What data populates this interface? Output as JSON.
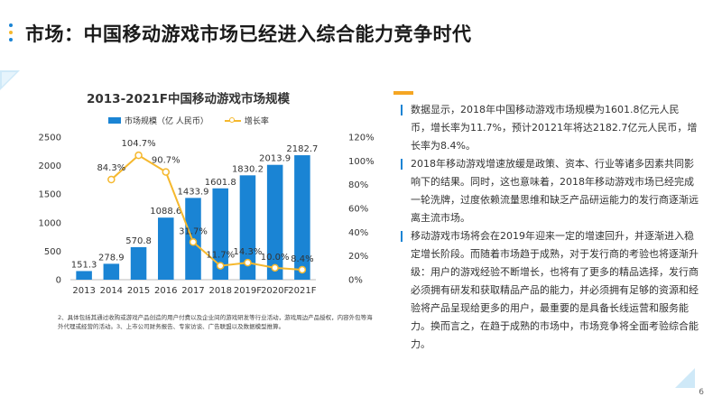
{
  "page_title": "市场：中国移动游戏市场已经进入综合能力竞争时代",
  "page_number": "6",
  "colors": {
    "bar": "#1a84d4",
    "line": "#f5b82e",
    "accent": "#f5a623",
    "dots": [
      "#1a84d4",
      "#f5b82e",
      "#1a84d4"
    ]
  },
  "chart_data": {
    "type": "bar",
    "title": "2013-2021F中国移动游戏市场规模",
    "categories": [
      "2013",
      "2014",
      "2015",
      "2016",
      "2017",
      "2018",
      "2019F",
      "2020F",
      "2021F"
    ],
    "series": [
      {
        "name": "市场规模（亿 人民币）",
        "type": "bar",
        "axis": "left",
        "values": [
          151.3,
          278.9,
          570.8,
          1088.6,
          1433.9,
          1601.8,
          1830.2,
          2013.9,
          2182.7
        ],
        "labels": [
          "151.3",
          "278.9",
          "570.8",
          "1088.6",
          "1433.9",
          "1601.8",
          "1830.2",
          "2013.9",
          "2182.7"
        ]
      },
      {
        "name": "增长率",
        "type": "line",
        "axis": "right",
        "values": [
          null,
          84.3,
          104.7,
          90.7,
          31.7,
          11.7,
          14.3,
          10.0,
          8.4
        ],
        "labels": [
          "",
          "84.3%",
          "104.7%",
          "90.7%",
          "31.7%",
          "11.7%",
          "14.3%",
          "10.0%",
          "8.4%"
        ]
      }
    ],
    "ylim": [
      0,
      2500
    ],
    "yticks": [
      "0",
      "500",
      "1000",
      "1500",
      "2000",
      "2500"
    ],
    "y2lim": [
      0,
      120
    ],
    "y2ticks": [
      "0%",
      "20%",
      "40%",
      "60%",
      "80%",
      "100%",
      "120%"
    ],
    "legend_position": "top"
  },
  "footnote": "2、具体包括其通过收购或游戏产品创造的用户付费以及企业间的游戏研发等行业活动，游戏周边产品授权，内容外包等海外代理或经营的活动。3、上市公司财务报告、专家访谈、广告联盟以及数据模型推算。",
  "bullets": [
    "数据显示，2018年中国移动游戏市场规模为1601.8亿元人民币，增长率为11.7%，预计20121年将达2182.7亿元人民币，增长率为8.4%。",
    "2018年移动游戏增速放缓是政策、资本、行业等诸多因素共同影响下的结果。同时，这也意味着，2018年移动游戏市场已经完成一轮洗牌，过度依赖流量思维和缺乏产品研运能力的发行商逐渐远离主流市场。",
    "移动游戏市场将会在2019年迎来一定的增速回升，并逐渐进入稳定增长阶段。而随着市场趋于成熟，对于发行商的考验也将逐渐升级：用户的游戏经验不断增长，也将有了更多的精品选择，发行商必须拥有研发和获取精品产品的能力，并必须拥有足够的资源和经验将产品呈现给更多的用户，最重要的是具备长线运营和服务能力。换而言之，在趋于成熟的市场中，市场竞争将全面考验综合能力。"
  ]
}
